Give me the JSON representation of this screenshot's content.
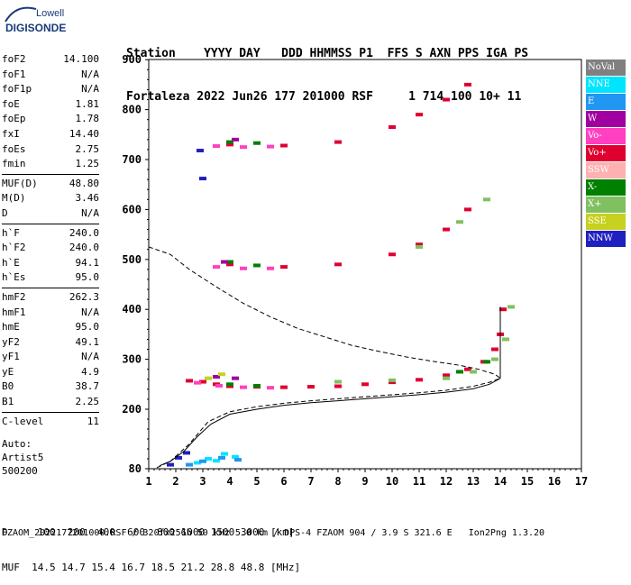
{
  "logo": {
    "line1": "Lowell",
    "line2": "DIGISONDE"
  },
  "header": {
    "row1": "Station    YYYY DAY   DDD HHMMSS P1  FFS S AXN PPS IGA PS",
    "row2": "Fortaleza 2022 Jun26 177 201000 RSF     1 714 100 10+ 11"
  },
  "params_group1": [
    {
      "name": "foF2",
      "value": "14.100"
    },
    {
      "name": "foF1",
      "value": "N/A"
    },
    {
      "name": "foF1p",
      "value": "N/A"
    },
    {
      "name": "foE",
      "value": "1.81"
    },
    {
      "name": "foEp",
      "value": "1.78"
    },
    {
      "name": "fxI",
      "value": "14.40"
    },
    {
      "name": "foEs",
      "value": "2.75"
    },
    {
      "name": "fmin",
      "value": "1.25"
    }
  ],
  "params_group2": [
    {
      "name": "MUF(D)",
      "value": "48.80"
    },
    {
      "name": "M(D)",
      "value": "3.46"
    },
    {
      "name": "D",
      "value": "N/A"
    }
  ],
  "params_group3": [
    {
      "name": "h`F",
      "value": "240.0"
    },
    {
      "name": "h`F2",
      "value": "240.0"
    },
    {
      "name": "h`E",
      "value": "94.1"
    },
    {
      "name": "h`Es",
      "value": "95.0"
    }
  ],
  "params_group4": [
    {
      "name": "hmF2",
      "value": "262.3"
    },
    {
      "name": "hmF1",
      "value": "N/A"
    },
    {
      "name": "hmE",
      "value": "95.0"
    },
    {
      "name": "yF2",
      "value": "49.1"
    },
    {
      "name": "yF1",
      "value": "N/A"
    },
    {
      "name": "yE",
      "value": "4.9"
    },
    {
      "name": "B0",
      "value": "38.7"
    },
    {
      "name": "B1",
      "value": "2.25"
    }
  ],
  "params_group5": [
    {
      "name": "C-level",
      "value": "11"
    }
  ],
  "auto": {
    "line1": "Auto:",
    "line2": "Artist5",
    "line3": "500200"
  },
  "legend": [
    {
      "label": "NoVal",
      "color": "#808080",
      "text": "#ffffff"
    },
    {
      "label": "NNE",
      "color": "#00e5ff",
      "text": "#ffffff"
    },
    {
      "label": "E",
      "color": "#2196f3",
      "text": "#ffffff"
    },
    {
      "label": "W",
      "color": "#a000a0",
      "text": "#ffffff"
    },
    {
      "label": "Vo-",
      "color": "#ff40c0",
      "text": "#ffffff"
    },
    {
      "label": "Vo+",
      "color": "#e00030",
      "text": "#ffffff"
    },
    {
      "label": "SSW",
      "color": "#ffb0b0",
      "text": "#ffffff"
    },
    {
      "label": "X-",
      "color": "#008000",
      "text": "#ffffff"
    },
    {
      "label": "X+",
      "color": "#80c060",
      "text": "#ffffff"
    },
    {
      "label": "SSE",
      "color": "#c8d020",
      "text": "#ffffff"
    },
    {
      "label": "NNW",
      "color": "#2020c0",
      "text": "#ffffff"
    }
  ],
  "footer": {
    "d_line": "D     100  200  400  600  800 1000 1500 3000 [km]",
    "muf_line": "MUF  14.5 14.7 15.4 16.7 18.5 21.2 28.8 48.8 [MHz]",
    "file_line": "FZAOM_2022177201000.RSF / 320fx256h 50 kHz 5.0 km / DPS-4 FZAOM 904 / 3.9 S 321.6 E   Ion2Png 1.3.20"
  },
  "chart_data": {
    "type": "scatter",
    "xlim": [
      1,
      17
    ],
    "ylim": [
      80,
      900
    ],
    "x_ticks": [
      1,
      2,
      3,
      4,
      5,
      6,
      7,
      8,
      9,
      10,
      11,
      12,
      13,
      14,
      15,
      16,
      17
    ],
    "y_ticks": [
      80,
      200,
      300,
      400,
      500,
      600,
      700,
      800,
      900
    ],
    "series": [
      {
        "name": "Vo+",
        "color": "#e00030",
        "points": [
          [
            2.5,
            257
          ],
          [
            3,
            255
          ],
          [
            3.5,
            250
          ],
          [
            4,
            246
          ],
          [
            5,
            245
          ],
          [
            6,
            244
          ],
          [
            7,
            245
          ],
          [
            8,
            246
          ],
          [
            9,
            250
          ],
          [
            10,
            254
          ],
          [
            11,
            259
          ],
          [
            12,
            268
          ],
          [
            12.8,
            280
          ],
          [
            13.4,
            295
          ],
          [
            13.8,
            320
          ],
          [
            14.0,
            350
          ],
          [
            14.1,
            400
          ],
          [
            4,
            490
          ],
          [
            6,
            485
          ],
          [
            8,
            490
          ],
          [
            10,
            510
          ],
          [
            11,
            530
          ],
          [
            12,
            560
          ],
          [
            12.8,
            600
          ],
          [
            4,
            730
          ],
          [
            6,
            728
          ],
          [
            8,
            735
          ],
          [
            10,
            765
          ],
          [
            11,
            790
          ],
          [
            12,
            820
          ],
          [
            12.8,
            850
          ]
        ]
      },
      {
        "name": "Vo-",
        "color": "#ff40c0",
        "points": [
          [
            2.8,
            253
          ],
          [
            3.6,
            247
          ],
          [
            4.5,
            244
          ],
          [
            5.5,
            243
          ],
          [
            3.5,
            485
          ],
          [
            4.5,
            482
          ],
          [
            5.5,
            482
          ],
          [
            3.5,
            727
          ],
          [
            4.5,
            725
          ],
          [
            5.5,
            726
          ]
        ]
      },
      {
        "name": "X+",
        "color": "#80c060",
        "points": [
          [
            8,
            255
          ],
          [
            10,
            258
          ],
          [
            12,
            262
          ],
          [
            13,
            275
          ],
          [
            13.8,
            300
          ],
          [
            14.2,
            340
          ],
          [
            14.4,
            405
          ],
          [
            11,
            525
          ],
          [
            12.5,
            575
          ],
          [
            13.5,
            620
          ]
        ]
      },
      {
        "name": "X-",
        "color": "#008000",
        "points": [
          [
            4,
            250
          ],
          [
            5,
            247
          ],
          [
            12.5,
            275
          ],
          [
            13.5,
            295
          ],
          [
            4,
            495
          ],
          [
            5,
            488
          ],
          [
            4,
            735
          ],
          [
            5,
            733
          ]
        ]
      },
      {
        "name": "W",
        "color": "#a000a0",
        "points": [
          [
            3.5,
            265
          ],
          [
            4.2,
            262
          ],
          [
            3.8,
            495
          ],
          [
            4.2,
            740
          ]
        ]
      },
      {
        "name": "SSE",
        "color": "#c8d020",
        "points": [
          [
            3.2,
            262
          ],
          [
            3.7,
            270
          ]
        ]
      },
      {
        "name": "NNE",
        "color": "#00e5ff",
        "points": [
          [
            2.8,
            92
          ],
          [
            3.2,
            100
          ],
          [
            3.5,
            96
          ],
          [
            3.8,
            110
          ],
          [
            4.2,
            104
          ]
        ]
      },
      {
        "name": "E",
        "color": "#2196f3",
        "points": [
          [
            2.5,
            88
          ],
          [
            3,
            95
          ],
          [
            3.7,
            102
          ],
          [
            4.3,
            98
          ]
        ]
      },
      {
        "name": "NNW",
        "color": "#2020c0",
        "points": [
          [
            2.9,
            718
          ],
          [
            3.0,
            662
          ],
          [
            1.8,
            88
          ],
          [
            2.1,
            102
          ],
          [
            2.4,
            112
          ]
        ]
      }
    ],
    "profile": {
      "points": [
        [
          1.3,
          82
        ],
        [
          1.8,
          95
        ],
        [
          2.5,
          130
        ],
        [
          3.2,
          175
        ],
        [
          4,
          195
        ],
        [
          5,
          205
        ],
        [
          6,
          212
        ],
        [
          7,
          217
        ],
        [
          8,
          221
        ],
        [
          9,
          225
        ],
        [
          10,
          229
        ],
        [
          11,
          233
        ],
        [
          12,
          238
        ],
        [
          13,
          246
        ],
        [
          13.6,
          254
        ],
        [
          14.0,
          262
        ],
        [
          13.8,
          270
        ],
        [
          13.2,
          280
        ],
        [
          12.5,
          288
        ],
        [
          11.5,
          296
        ],
        [
          10.5,
          305
        ],
        [
          9.5,
          316
        ],
        [
          8.5,
          328
        ],
        [
          7.5,
          345
        ],
        [
          6.5,
          362
        ],
        [
          5.5,
          385
        ],
        [
          4.5,
          412
        ],
        [
          3.5,
          445
        ],
        [
          2.5,
          480
        ],
        [
          1.8,
          510
        ],
        [
          1,
          525
        ]
      ]
    },
    "true_height": {
      "points": [
        [
          1.4,
          86
        ],
        [
          1.8,
          95
        ],
        [
          2.3,
          115
        ],
        [
          2.8,
          145
        ],
        [
          3.3,
          170
        ],
        [
          4,
          190
        ],
        [
          5,
          200
        ],
        [
          6,
          208
        ],
        [
          7,
          213
        ],
        [
          8,
          217
        ],
        [
          9,
          221
        ],
        [
          10,
          225
        ],
        [
          11,
          229
        ],
        [
          12,
          234
        ],
        [
          13,
          241
        ],
        [
          13.6,
          250
        ],
        [
          14.0,
          262
        ],
        [
          14.0,
          330
        ],
        [
          14.0,
          405
        ]
      ]
    }
  }
}
